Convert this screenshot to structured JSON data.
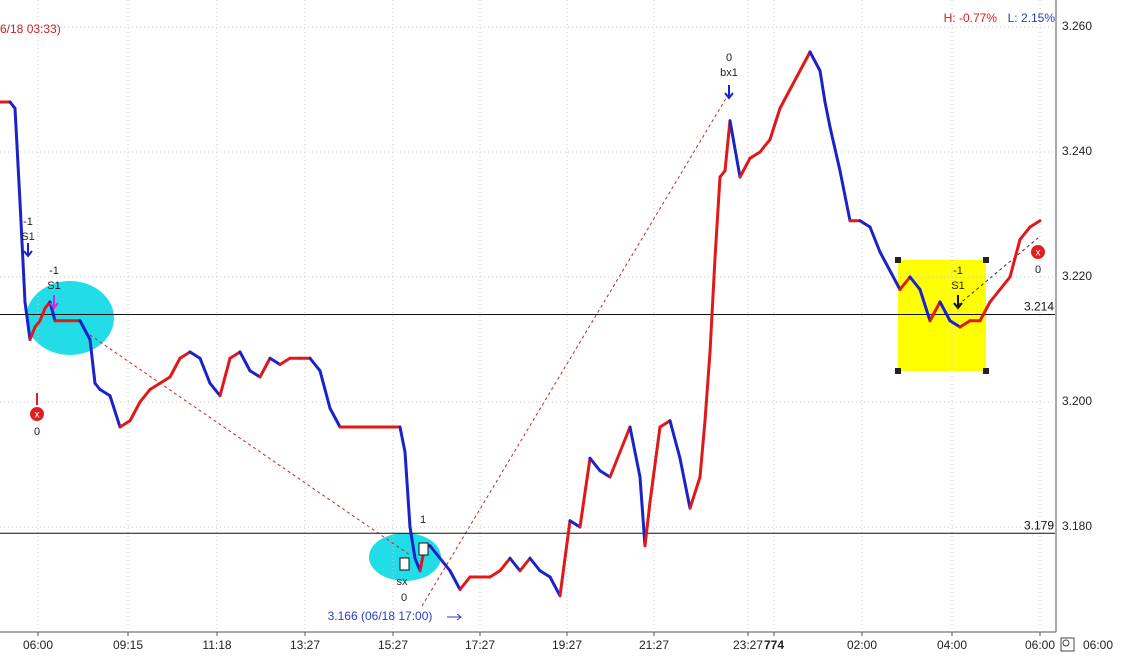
{
  "chart_data": {
    "type": "line",
    "header": {
      "info_left": "6/18 03:33)",
      "high": "H: -0.77%",
      "low": "L: 2.15%"
    },
    "annotations": {
      "low_point": "3.166 (06/18 17:00)",
      "axis_end": "06:00",
      "trades": [
        "-1",
        "S1",
        "0",
        "-1",
        "S1",
        "1",
        "sx",
        "0",
        "0",
        "bx1",
        "-1",
        "S1",
        "0"
      ]
    },
    "reference_lines": [
      3.214,
      3.179
    ],
    "xlim": [
      0,
      1055
    ],
    "ylim": [
      3.1632,
      3.26432
    ],
    "xticks": [
      {
        "value": 38,
        "label": "06:00"
      },
      {
        "value": 128,
        "label": "09:15"
      },
      {
        "value": 217,
        "label": "11:18"
      },
      {
        "value": 305,
        "label": "13:27"
      },
      {
        "value": 393,
        "label": "15:27"
      },
      {
        "value": 480,
        "label": "17:27"
      },
      {
        "value": 567,
        "label": "19:27"
      },
      {
        "value": 654,
        "label": "21:27"
      },
      {
        "value": 748,
        "label": "23:27"
      },
      774,
      {
        "value": 862,
        "label": "02:00"
      },
      {
        "value": 952,
        "label": "04:00"
      },
      {
        "value": 1040,
        "label": "06:00"
      }
    ],
    "yticks": [
      {
        "value": 3.18,
        "label": "3.180"
      },
      {
        "value": 3.2,
        "label": "3.200"
      },
      {
        "value": 3.22,
        "label": "3.220"
      },
      {
        "value": 3.24,
        "label": "3.240"
      },
      {
        "value": 3.26,
        "label": "3.260"
      }
    ],
    "grid": true,
    "x": [
      0,
      10,
      15,
      20,
      25,
      30,
      35,
      40,
      45,
      50,
      55,
      60,
      70,
      80,
      90,
      95,
      100,
      110,
      120,
      130,
      140,
      150,
      160,
      170,
      180,
      190,
      200,
      210,
      220,
      230,
      240,
      250,
      260,
      270,
      280,
      290,
      300,
      310,
      320,
      330,
      340,
      350,
      360,
      370,
      380,
      390,
      400,
      405,
      410,
      415,
      420,
      425,
      430,
      440,
      450,
      460,
      470,
      480,
      490,
      500,
      510,
      520,
      530,
      540,
      550,
      560,
      570,
      580,
      590,
      600,
      610,
      620,
      630,
      640,
      645,
      650,
      660,
      670,
      680,
      690,
      700,
      705,
      710,
      715,
      720,
      725,
      730,
      740,
      750,
      760,
      770,
      780,
      790,
      800,
      810,
      820,
      825,
      830,
      840,
      850,
      860,
      870,
      880,
      890,
      900,
      910,
      920,
      930,
      940,
      950,
      960,
      970,
      980,
      990,
      1000,
      1010,
      1020,
      1030,
      1040
    ],
    "series": [
      {
        "color": "#e01818",
        "down_color": "#1a22c8",
        "values": [
          3.248,
          3.248,
          3.247,
          3.232,
          3.216,
          3.21,
          3.212,
          3.213,
          3.215,
          3.216,
          3.213,
          3.213,
          3.213,
          3.213,
          3.21,
          3.203,
          3.202,
          3.201,
          3.196,
          3.197,
          3.2,
          3.202,
          3.203,
          3.204,
          3.207,
          3.208,
          3.207,
          3.203,
          3.201,
          3.207,
          3.208,
          3.205,
          3.204,
          3.207,
          3.206,
          3.207,
          3.207,
          3.207,
          3.205,
          3.199,
          3.196,
          3.196,
          3.196,
          3.196,
          3.196,
          3.196,
          3.196,
          3.192,
          3.18,
          3.175,
          3.173,
          3.177,
          3.177,
          3.175,
          3.173,
          3.17,
          3.172,
          3.172,
          3.172,
          3.173,
          3.175,
          3.173,
          3.175,
          3.173,
          3.172,
          3.169,
          3.181,
          3.18,
          3.191,
          3.189,
          3.188,
          3.192,
          3.196,
          3.188,
          3.177,
          3.184,
          3.196,
          3.197,
          3.191,
          3.183,
          3.188,
          3.197,
          3.208,
          3.223,
          3.236,
          3.237,
          3.245,
          3.236,
          3.239,
          3.24,
          3.242,
          3.247,
          3.25,
          3.253,
          3.256,
          3.253,
          3.248,
          3.244,
          3.237,
          3.229,
          3.229,
          3.228,
          3.224,
          3.221,
          3.218,
          3.22,
          3.218,
          3.213,
          3.216,
          3.213,
          3.212,
          3.213,
          3.213,
          3.216,
          3.218,
          3.22,
          3.226,
          3.228,
          3.229
        ]
      }
    ]
  }
}
